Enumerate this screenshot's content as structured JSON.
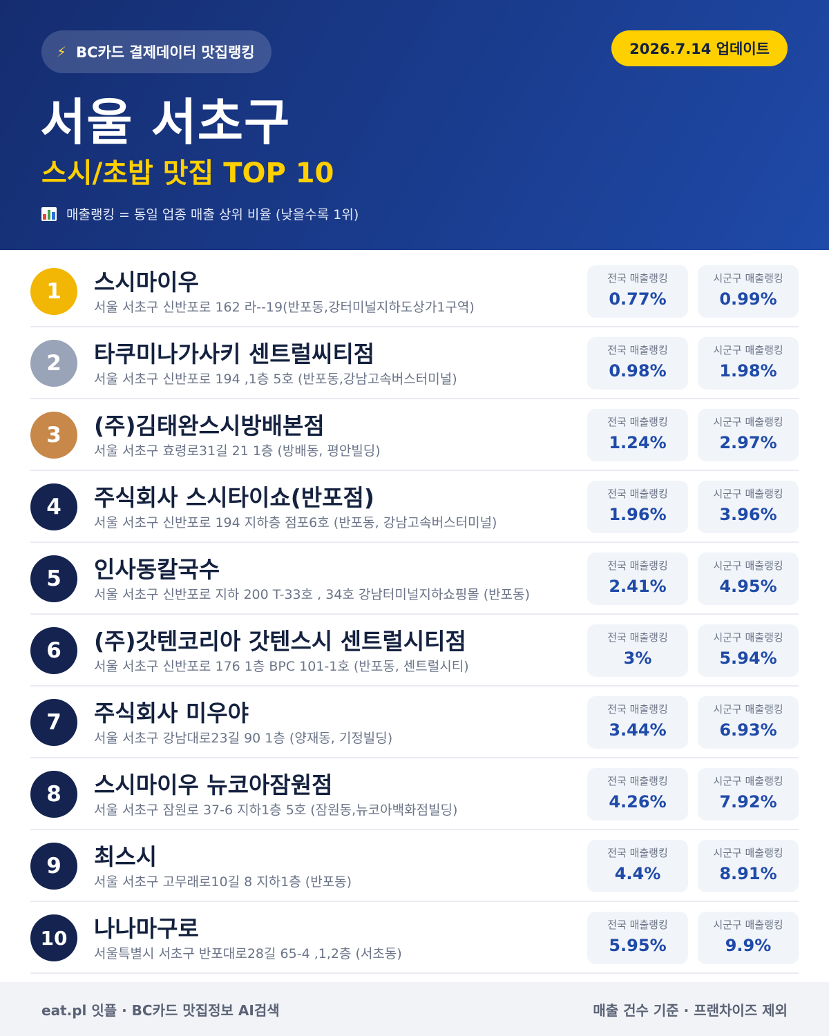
{
  "header": {
    "source_label": "BC카드 결제데이터 맛집랭킹",
    "source_icon": "lightning-icon",
    "update_label": "2026.7.14 업데이트",
    "region": "서울 서초구",
    "subtitle": "스시/초밥 맛집 TOP 10",
    "note_icon": "bar-chart-icon",
    "note": "매출랭킹 = 동일 업종 매출 상위 비율 (낮을수록 1위)"
  },
  "colors": {
    "accent_yellow": "#ffd000",
    "header_blue": "#1a3c8e",
    "rank_gold": "#f2b705",
    "rank_silver": "#9aa4b8",
    "rank_bronze": "#c8884a",
    "rank_navy": "#14234f",
    "value_blue": "#1f4aa8"
  },
  "list": {
    "national_label": "전국 매출랭킹",
    "district_label": "시군구 매출랭킹",
    "items": [
      {
        "rank": "1",
        "name": "스시마이우",
        "address": "서울 서초구 신반포로 162 라--19(반포동,강터미널지하도상가1구역)",
        "national": "0.77%",
        "district": "0.99%"
      },
      {
        "rank": "2",
        "name": "타쿠미나가사키 센트럴씨티점",
        "address": "서울 서초구 신반포로 194 ,1층 5호 (반포동,강남고속버스터미널)",
        "national": "0.98%",
        "district": "1.98%"
      },
      {
        "rank": "3",
        "name": "(주)김태완스시방배본점",
        "address": "서울 서초구 효령로31길 21 1층 (방배동, 평안빌딩)",
        "national": "1.24%",
        "district": "2.97%"
      },
      {
        "rank": "4",
        "name": "주식회사 스시타이쇼(반포점)",
        "address": "서울 서초구 신반포로 194 지하층 점포6호 (반포동, 강남고속버스터미널)",
        "national": "1.96%",
        "district": "3.96%"
      },
      {
        "rank": "5",
        "name": "인사동칼국수",
        "address": "서울 서초구 신반포로 지하 200 T-33호 , 34호 강남터미널지하쇼핑몰 (반포동)",
        "national": "2.41%",
        "district": "4.95%"
      },
      {
        "rank": "6",
        "name": "(주)갓텐코리아 갓텐스시 센트럴시티점",
        "address": "서울 서초구 신반포로 176 1층 BPC 101-1호 (반포동, 센트럴시티)",
        "national": "3%",
        "district": "5.94%"
      },
      {
        "rank": "7",
        "name": "주식회사 미우야",
        "address": "서울 서초구 강남대로23길 90 1층 (양재동, 기정빌딩)",
        "national": "3.44%",
        "district": "6.93%"
      },
      {
        "rank": "8",
        "name": "스시마이우 뉴코아잠원점",
        "address": "서울 서초구 잠원로 37-6 지하1층 5호 (잠원동,뉴코아백화점빌딩)",
        "national": "4.26%",
        "district": "7.92%"
      },
      {
        "rank": "9",
        "name": "최스시",
        "address": "서울 서초구 고무래로10길 8 지하1층 (반포동)",
        "national": "4.4%",
        "district": "8.91%"
      },
      {
        "rank": "10",
        "name": "나나마구로",
        "address": "서울특별시 서초구 반포대로28길 65-4 ,1,2층 (서초동)",
        "national": "5.95%",
        "district": "9.9%"
      }
    ]
  },
  "footer": {
    "left": "eat.pl 잇플 · BC카드 맛집정보 AI검색",
    "right": "매출 건수 기준 · 프랜차이즈 제외"
  }
}
